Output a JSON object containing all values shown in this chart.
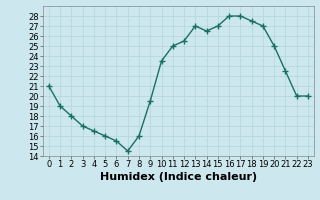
{
  "x": [
    0,
    1,
    2,
    3,
    4,
    5,
    6,
    7,
    8,
    9,
    10,
    11,
    12,
    13,
    14,
    15,
    16,
    17,
    18,
    19,
    20,
    21,
    22,
    23
  ],
  "y": [
    21,
    19,
    18,
    17,
    16.5,
    16,
    15.5,
    14.5,
    16,
    19.5,
    23.5,
    25,
    25.5,
    27,
    26.5,
    27,
    28,
    28,
    27.5,
    27,
    25,
    22.5,
    20,
    20
  ],
  "line_color": "#1a7060",
  "marker": "+",
  "marker_size": 4,
  "bg_color": "#cce8ee",
  "grid_color": "#b8d8de",
  "xlabel": "Humidex (Indice chaleur)",
  "xlabel_fontsize": 8,
  "xlim": [
    -0.5,
    23.5
  ],
  "ylim": [
    14,
    29
  ],
  "yticks": [
    14,
    15,
    16,
    17,
    18,
    19,
    20,
    21,
    22,
    23,
    24,
    25,
    26,
    27,
    28
  ],
  "xticks": [
    0,
    1,
    2,
    3,
    4,
    5,
    6,
    7,
    8,
    9,
    10,
    11,
    12,
    13,
    14,
    15,
    16,
    17,
    18,
    19,
    20,
    21,
    22,
    23
  ],
  "tick_fontsize": 6,
  "linewidth": 1.0
}
